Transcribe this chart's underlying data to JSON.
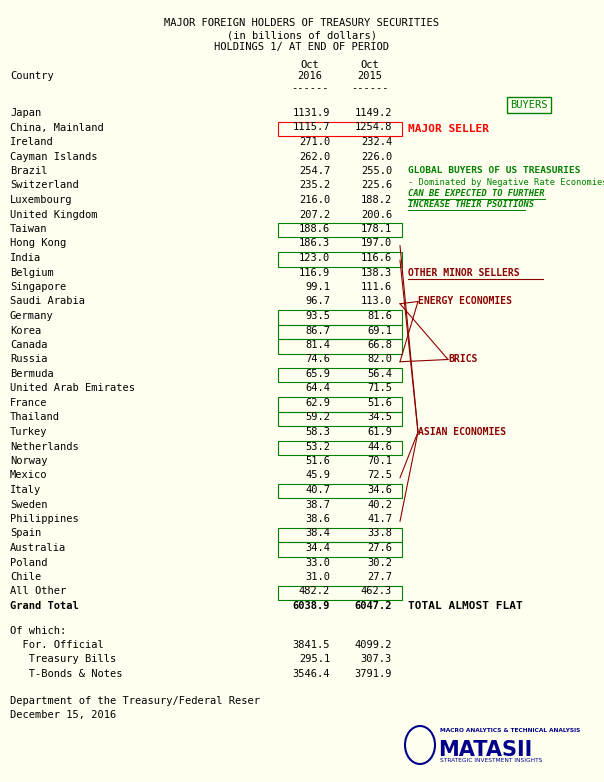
{
  "title_lines": [
    "MAJOR FOREIGN HOLDERS OF TREASURY SECURITIES",
    "(in billions of dollars)",
    "HOLDINGS 1/ AT END OF PERIOD"
  ],
  "rows": [
    {
      "country": "Japan",
      "v2016": "1131.9",
      "v2015": "1149.2",
      "box_color": null
    },
    {
      "country": "China, Mainland",
      "v2016": "1115.7",
      "v2015": "1254.8",
      "box_color": "red"
    },
    {
      "country": "Ireland",
      "v2016": "271.0",
      "v2015": "232.4",
      "box_color": null
    },
    {
      "country": "Cayman Islands",
      "v2016": "262.0",
      "v2015": "226.0",
      "box_color": null
    },
    {
      "country": "Brazil",
      "v2016": "254.7",
      "v2015": "255.0",
      "box_color": null
    },
    {
      "country": "Switzerland",
      "v2016": "235.2",
      "v2015": "225.6",
      "box_color": null
    },
    {
      "country": "Luxembourg",
      "v2016": "216.0",
      "v2015": "188.2",
      "box_color": null
    },
    {
      "country": "United Kingdom",
      "v2016": "207.2",
      "v2015": "200.6",
      "box_color": null
    },
    {
      "country": "Taiwan",
      "v2016": "188.6",
      "v2015": "178.1",
      "box_color": "green"
    },
    {
      "country": "Hong Kong",
      "v2016": "186.3",
      "v2015": "197.0",
      "box_color": null
    },
    {
      "country": "India",
      "v2016": "123.0",
      "v2015": "116.6",
      "box_color": "green"
    },
    {
      "country": "Belgium",
      "v2016": "116.9",
      "v2015": "138.3",
      "box_color": null
    },
    {
      "country": "Singapore",
      "v2016": "99.1",
      "v2015": "111.6",
      "box_color": null
    },
    {
      "country": "Saudi Arabia",
      "v2016": "96.7",
      "v2015": "113.0",
      "box_color": null
    },
    {
      "country": "Germany",
      "v2016": "93.5",
      "v2015": "81.6",
      "box_color": "green"
    },
    {
      "country": "Korea",
      "v2016": "86.7",
      "v2015": "69.1",
      "box_color": "green"
    },
    {
      "country": "Canada",
      "v2016": "81.4",
      "v2015": "66.8",
      "box_color": "green"
    },
    {
      "country": "Russia",
      "v2016": "74.6",
      "v2015": "82.0",
      "box_color": null
    },
    {
      "country": "Bermuda",
      "v2016": "65.9",
      "v2015": "56.4",
      "box_color": "green"
    },
    {
      "country": "United Arab Emirates",
      "v2016": "64.4",
      "v2015": "71.5",
      "box_color": null
    },
    {
      "country": "France",
      "v2016": "62.9",
      "v2015": "51.6",
      "box_color": "green"
    },
    {
      "country": "Thailand",
      "v2016": "59.2",
      "v2015": "34.5",
      "box_color": "green"
    },
    {
      "country": "Turkey",
      "v2016": "58.3",
      "v2015": "61.9",
      "box_color": null
    },
    {
      "country": "Netherlands",
      "v2016": "53.2",
      "v2015": "44.6",
      "box_color": "green"
    },
    {
      "country": "Norway",
      "v2016": "51.6",
      "v2015": "70.1",
      "box_color": null
    },
    {
      "country": "Mexico",
      "v2016": "45.9",
      "v2015": "72.5",
      "box_color": null
    },
    {
      "country": "Italy",
      "v2016": "40.7",
      "v2015": "34.6",
      "box_color": "green"
    },
    {
      "country": "Sweden",
      "v2016": "38.7",
      "v2015": "40.2",
      "box_color": null
    },
    {
      "country": "Philippines",
      "v2016": "38.6",
      "v2015": "41.7",
      "box_color": null
    },
    {
      "country": "Spain",
      "v2016": "38.4",
      "v2015": "33.8",
      "box_color": "green"
    },
    {
      "country": "Australia",
      "v2016": "34.4",
      "v2015": "27.6",
      "box_color": "green"
    },
    {
      "country": "Poland",
      "v2016": "33.0",
      "v2015": "30.2",
      "box_color": null
    },
    {
      "country": "Chile",
      "v2016": "31.0",
      "v2015": "27.7",
      "box_color": null
    },
    {
      "country": "All Other",
      "v2016": "482.2",
      "v2015": "462.3",
      "box_color": "green"
    },
    {
      "country": "Grand Total",
      "v2016": "6038.9",
      "v2015": "6047.2",
      "box_color": null
    }
  ],
  "of_which": [
    {
      "label": "Of which:",
      "v2016": "",
      "v2015": ""
    },
    {
      "label": "  For. Official",
      "v2016": "3841.5",
      "v2015": "4099.2"
    },
    {
      "label": "   Treasury Bills",
      "v2016": "295.1",
      "v2015": "307.3"
    },
    {
      "label": "   T-Bonds & Notes",
      "v2016": "3546.4",
      "v2015": "3791.9"
    }
  ],
  "footer_lines": [
    "Department of the Treasury/Federal Reser",
    "December 15, 2016"
  ],
  "bg_color": "#FFFFF0",
  "mono_font": "DejaVu Sans Mono",
  "title_fontsize": 7.5,
  "data_fontsize": 7.5
}
